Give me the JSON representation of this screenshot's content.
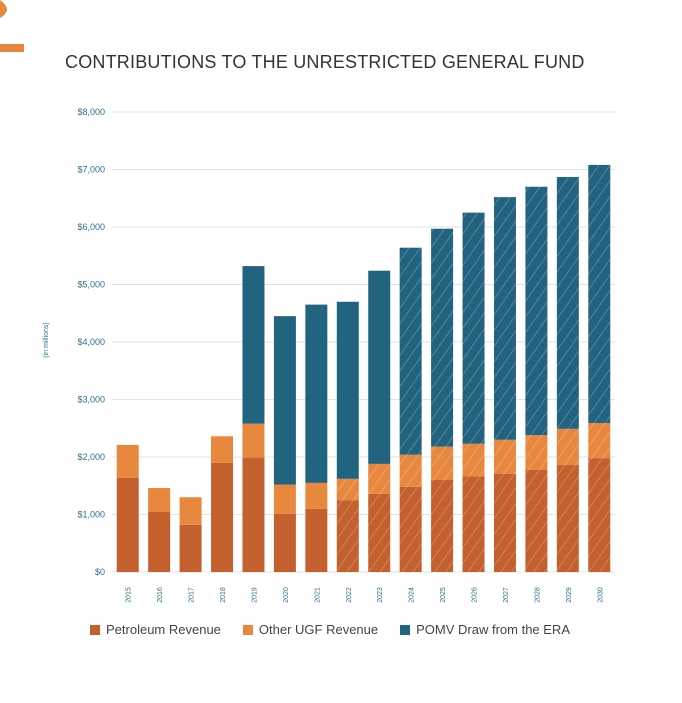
{
  "chart_data": {
    "type": "bar",
    "stacked": true,
    "title": "CONTRIBUTIONS TO THE UNRESTRICTED GENERAL FUND",
    "ylabel": "(in millions)",
    "xlabel": "",
    "ylim": [
      0,
      8000
    ],
    "yticks": [
      "$0",
      "$1,000",
      "$2,000",
      "$3,000",
      "$4,000",
      "$5,000",
      "$6,000",
      "$7,000",
      "$8,000"
    ],
    "grid": true,
    "legend_position": "bottom",
    "categories": [
      "2015",
      "2016",
      "2017",
      "2018",
      "2019",
      "2020",
      "2021",
      "2022",
      "2023",
      "2024",
      "2025",
      "2026",
      "2027",
      "2028",
      "2029",
      "2030"
    ],
    "series": [
      {
        "name": "Petroleum Revenue",
        "color": "#c4602d",
        "values": [
          1640,
          1050,
          820,
          1900,
          1990,
          1010,
          1100,
          1250,
          1360,
          1480,
          1600,
          1660,
          1710,
          1780,
          1860,
          1980
        ],
        "hatched_from": "2022"
      },
      {
        "name": "Other UGF Revenue",
        "color": "#e8883f",
        "values": [
          570,
          410,
          480,
          460,
          590,
          510,
          450,
          370,
          520,
          560,
          580,
          570,
          590,
          600,
          630,
          610
        ],
        "hatched_from": "2022"
      },
      {
        "name": "POMV Draw from the ERA",
        "color": "#22647f",
        "values": [
          0,
          0,
          0,
          0,
          2740,
          2930,
          3100,
          3080,
          3360,
          3600,
          3790,
          4020,
          4220,
          4320,
          4380,
          4490
        ],
        "hatched_from": "2024"
      }
    ]
  },
  "colors": {
    "tick": "#2d6f8f",
    "grid": "#e2e2e2",
    "accent": "#e8883f"
  }
}
